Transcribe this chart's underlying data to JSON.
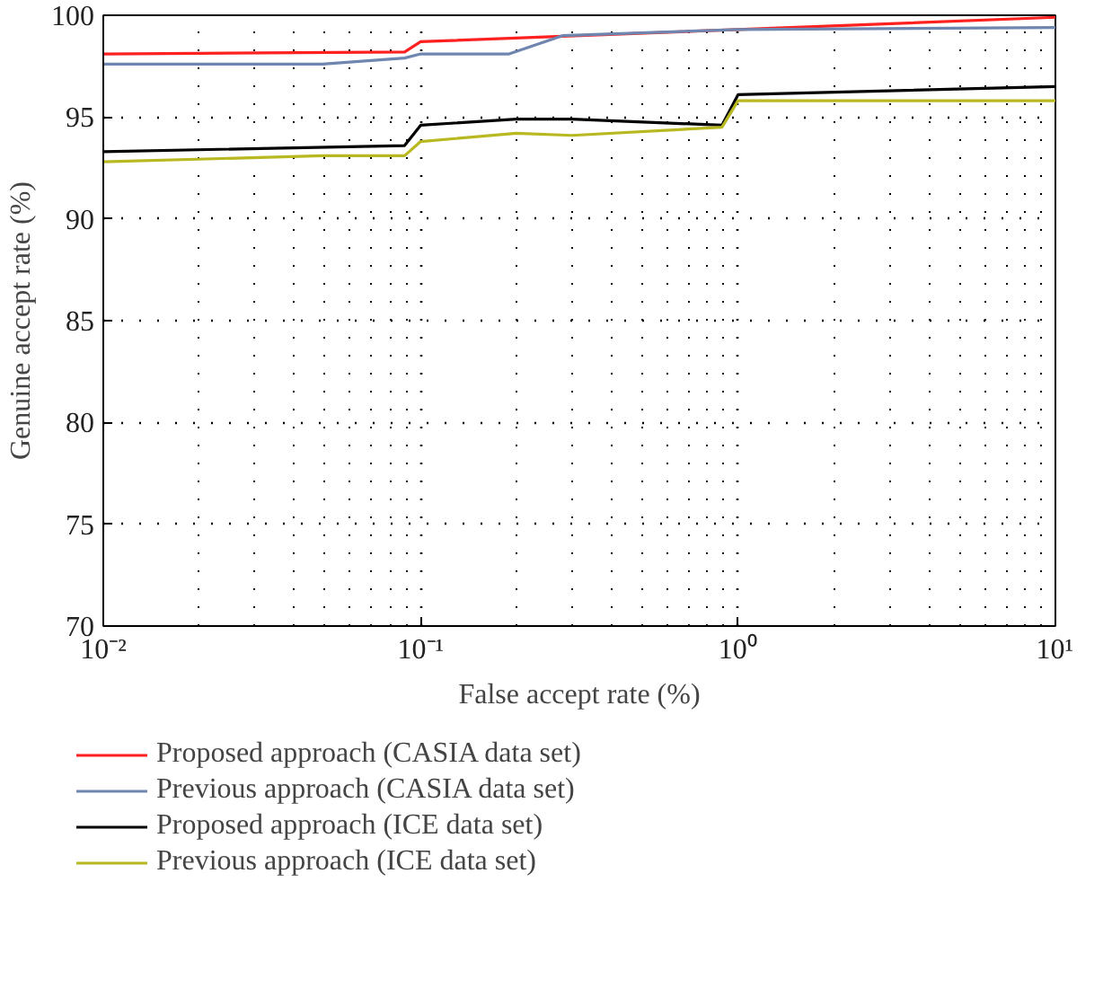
{
  "chart_data": {
    "type": "line",
    "xlabel": "False accept rate (%)",
    "ylabel": "Genuine accept rate (%)",
    "log": "x",
    "xlim": [
      0.01,
      10
    ],
    "ylim": [
      70,
      100
    ],
    "xticks": [
      {
        "value": 0.01,
        "label": "10⁻²"
      },
      {
        "value": 0.1,
        "label": "10⁻¹"
      },
      {
        "value": 1,
        "label": "10⁰"
      },
      {
        "value": 10,
        "label": "10¹"
      }
    ],
    "yticks": [
      70,
      75,
      80,
      85,
      90,
      95,
      100
    ],
    "grid": true,
    "legend": "bottom",
    "line_style": "solid",
    "marker": "none",
    "series": [
      {
        "name": "Proposed approach (CASIA data set)",
        "color": "#ff2020",
        "x": [
          0.01,
          0.089,
          0.1,
          10
        ],
        "values": [
          98.1,
          98.2,
          98.7,
          99.9
        ]
      },
      {
        "name": "Previous approach (CASIA data set)",
        "color": "#6f86b0",
        "x": [
          0.01,
          0.049,
          0.089,
          0.1,
          0.19,
          0.28,
          1,
          10
        ],
        "values": [
          97.6,
          97.6,
          97.9,
          98.1,
          98.1,
          99.0,
          99.3,
          99.4
        ]
      },
      {
        "name": "Proposed approach (ICE data set)",
        "color": "#000000",
        "x": [
          0.01,
          0.089,
          0.1,
          0.2,
          0.3,
          0.89,
          1,
          10
        ],
        "values": [
          93.3,
          93.6,
          94.6,
          94.9,
          94.9,
          94.6,
          96.1,
          96.5
        ]
      },
      {
        "name": "Previous approach (ICE data set)",
        "color": "#b8b820",
        "x": [
          0.01,
          0.049,
          0.089,
          0.1,
          0.2,
          0.3,
          0.89,
          1,
          10
        ],
        "values": [
          92.8,
          93.1,
          93.1,
          93.8,
          94.2,
          94.1,
          94.5,
          95.8,
          95.8
        ]
      }
    ]
  }
}
